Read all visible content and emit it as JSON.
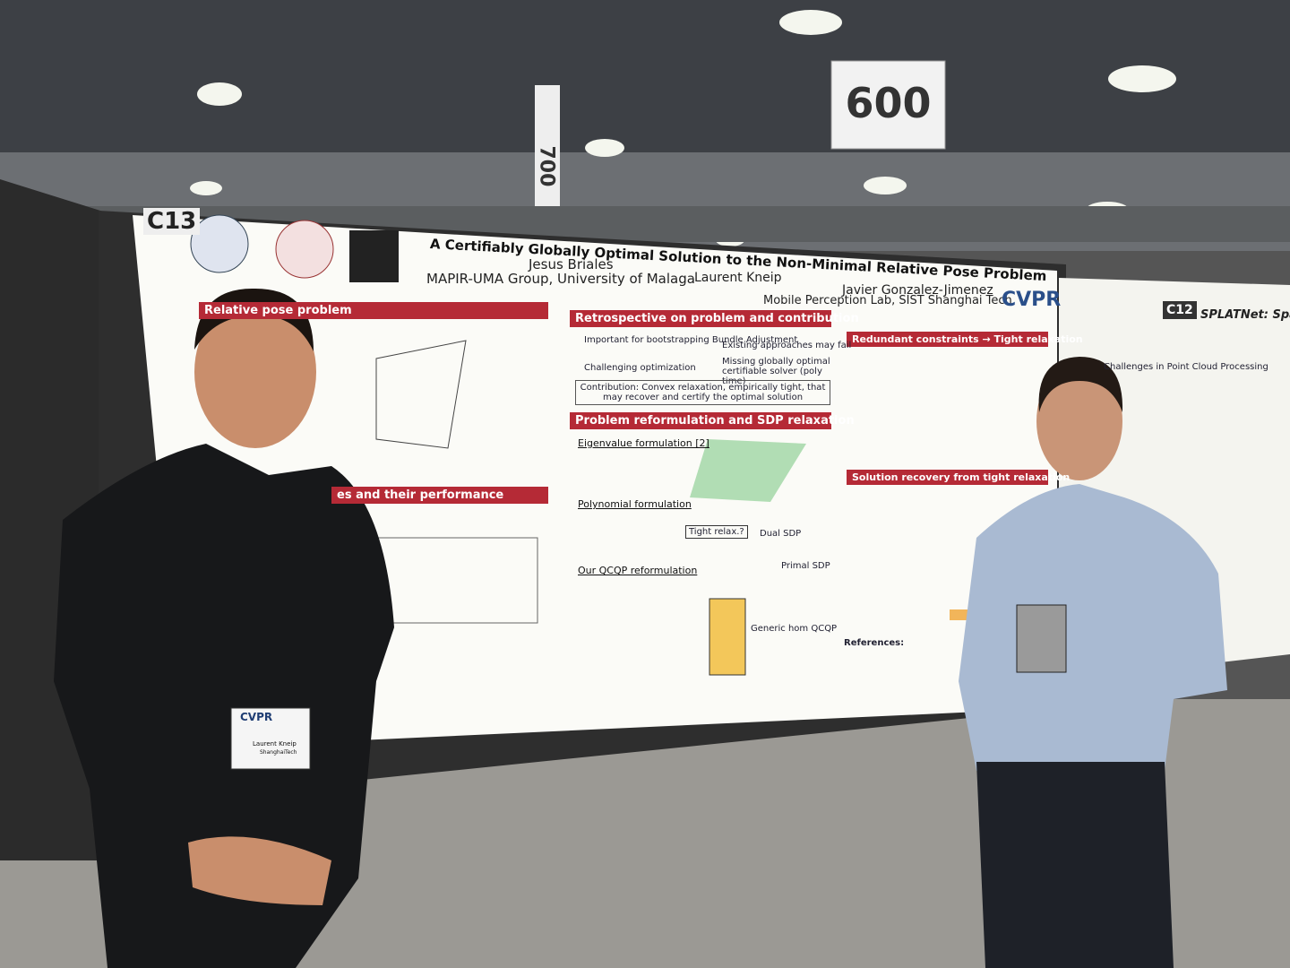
{
  "signs": {
    "hall_number": "600",
    "column_number": "700",
    "board_left": "C13",
    "board_right": "C12"
  },
  "poster": {
    "title": "A Certifiably Globally Optimal Solution to the Non-Minimal Relative Pose Problem",
    "authors": [
      "Jesus Briales",
      "Laurent Kneip",
      "Javier Gonzalez-Jimenez"
    ],
    "affiliations": [
      "MAPIR-UMA Group, University of Malaga",
      "Mobile Perception Lab, SIST Shanghai Tech"
    ],
    "logo": "CVPR",
    "sections": [
      "Relative pose problem",
      "es and their performance",
      "Retrospective on problem and contribution",
      "Problem reformulation and SDP relaxation",
      "Redundant constraints → Tight relaxation",
      "Solution recovery from tight relaxation"
    ],
    "bullets": [
      "Important for bootstrapping Bundle Adjustment",
      "Challenging optimization",
      "Existing approaches may fail",
      "Missing globally optimal certifiable solver (poly time)"
    ],
    "contribution": "Contribution: Convex relaxation, empirically tight, that may recover and certify the optimal solution",
    "subheadings": [
      "Eigenvalue formulation [2]",
      "Polynomial formulation",
      "Our QCQP reformulation",
      "Tight relax.?",
      "Dual SDP",
      "Primal SDP",
      "Generic hom QCQP",
      "References:"
    ]
  },
  "neighbor_poster": {
    "title": "SPLATNet: Spars",
    "section": "Challenges in Point Cloud Processing"
  },
  "badge": {
    "logo": "CVPR",
    "name": "Laurent Kneip",
    "affiliation": "ShanghaiTech"
  }
}
